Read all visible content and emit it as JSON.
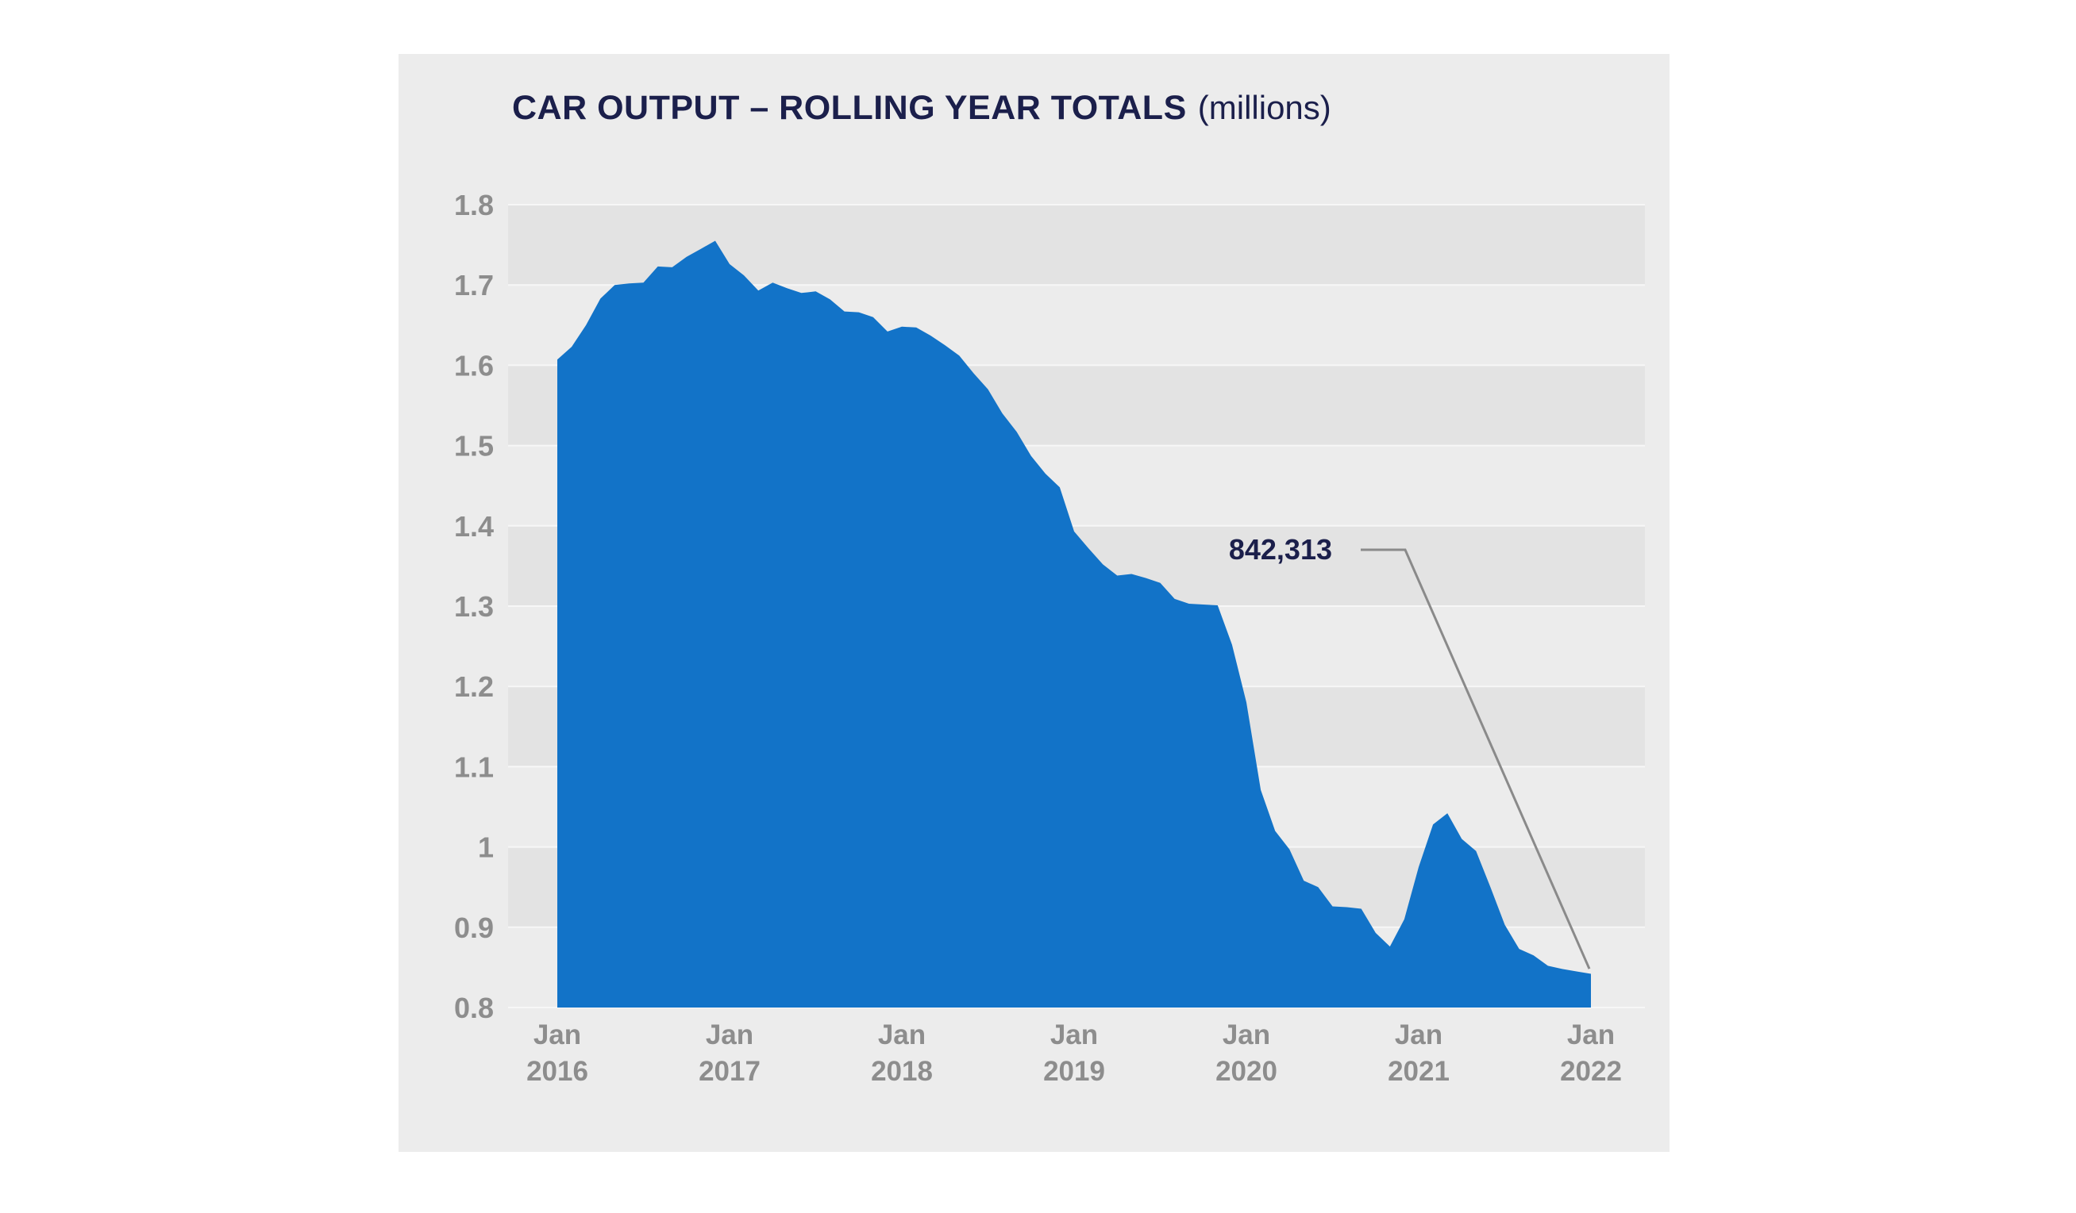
{
  "chart_data": {
    "type": "area",
    "title": "CAR OUTPUT – ROLLING YEAR TOTALS",
    "title_unit": "(millions)",
    "xlabel": "",
    "ylabel": "",
    "ylim": [
      0.8,
      1.8
    ],
    "yticks": [
      0.8,
      0.9,
      1,
      1.1,
      1.2,
      1.3,
      1.4,
      1.5,
      1.6,
      1.7,
      1.8
    ],
    "ytick_labels": [
      "0.8",
      "0.9",
      "1",
      "1.1",
      "1.2",
      "1.3",
      "1.4",
      "1.5",
      "1.6",
      "1.7",
      "1.8"
    ],
    "xlim": [
      "2016-01",
      "2022-01"
    ],
    "xticks": [
      {
        "line1": "Jan",
        "line2": "2016"
      },
      {
        "line1": "Jan",
        "line2": "2017"
      },
      {
        "line1": "Jan",
        "line2": "2018"
      },
      {
        "line1": "Jan",
        "line2": "2019"
      },
      {
        "line1": "Jan",
        "line2": "2020"
      },
      {
        "line1": "Jan",
        "line2": "2021"
      },
      {
        "line1": "Jan",
        "line2": "2022"
      }
    ],
    "grid": "horizontal",
    "color": "#1273c8",
    "series": [
      {
        "x": [
          "2016-01",
          "2016-02",
          "2016-03",
          "2016-04",
          "2016-05",
          "2016-06",
          "2016-07",
          "2016-08",
          "2016-09",
          "2016-10",
          "2016-11",
          "2016-12",
          "2017-01",
          "2017-02",
          "2017-03",
          "2017-04",
          "2017-05",
          "2017-06",
          "2017-07",
          "2017-08",
          "2017-09",
          "2017-10",
          "2017-11",
          "2017-12",
          "2018-01",
          "2018-02",
          "2018-03",
          "2018-04",
          "2018-05",
          "2018-06",
          "2018-07",
          "2018-08",
          "2018-09",
          "2018-10",
          "2018-11",
          "2018-12",
          "2019-01",
          "2019-02",
          "2019-03",
          "2019-04",
          "2019-05",
          "2019-06",
          "2019-07",
          "2019-08",
          "2019-09",
          "2019-10",
          "2019-11",
          "2019-12",
          "2020-01",
          "2020-02",
          "2020-03",
          "2020-04",
          "2020-05",
          "2020-06",
          "2020-07",
          "2020-08",
          "2020-09",
          "2020-10",
          "2020-11",
          "2020-12",
          "2021-01",
          "2021-02",
          "2021-03",
          "2021-04",
          "2021-05",
          "2021-06",
          "2021-07",
          "2021-08",
          "2021-09",
          "2021-10",
          "2021-11",
          "2021-12",
          "2022-01"
        ],
        "values": [
          1.607,
          1.623,
          1.65,
          1.683,
          1.7,
          1.702,
          1.703,
          1.723,
          1.722,
          1.735,
          1.745,
          1.755,
          1.726,
          1.712,
          1.693,
          1.703,
          1.696,
          1.69,
          1.692,
          1.682,
          1.667,
          1.666,
          1.66,
          1.642,
          1.648,
          1.647,
          1.637,
          1.625,
          1.612,
          1.59,
          1.57,
          1.54,
          1.517,
          1.487,
          1.465,
          1.448,
          1.393,
          1.372,
          1.352,
          1.338,
          1.34,
          1.335,
          1.329,
          1.309,
          1.303,
          1.302,
          1.301,
          1.252,
          1.18,
          1.071,
          1.02,
          0.997,
          0.958,
          0.95,
          0.926,
          0.925,
          0.923,
          0.893,
          0.876,
          0.91,
          0.975,
          1.028,
          1.042,
          1.01,
          0.995,
          0.95,
          0.903,
          0.873,
          0.865,
          0.852,
          0.848,
          0.845,
          0.842
        ]
      }
    ],
    "annotation": {
      "label": "842,313",
      "x": "2022-01",
      "y": 0.842313
    }
  }
}
